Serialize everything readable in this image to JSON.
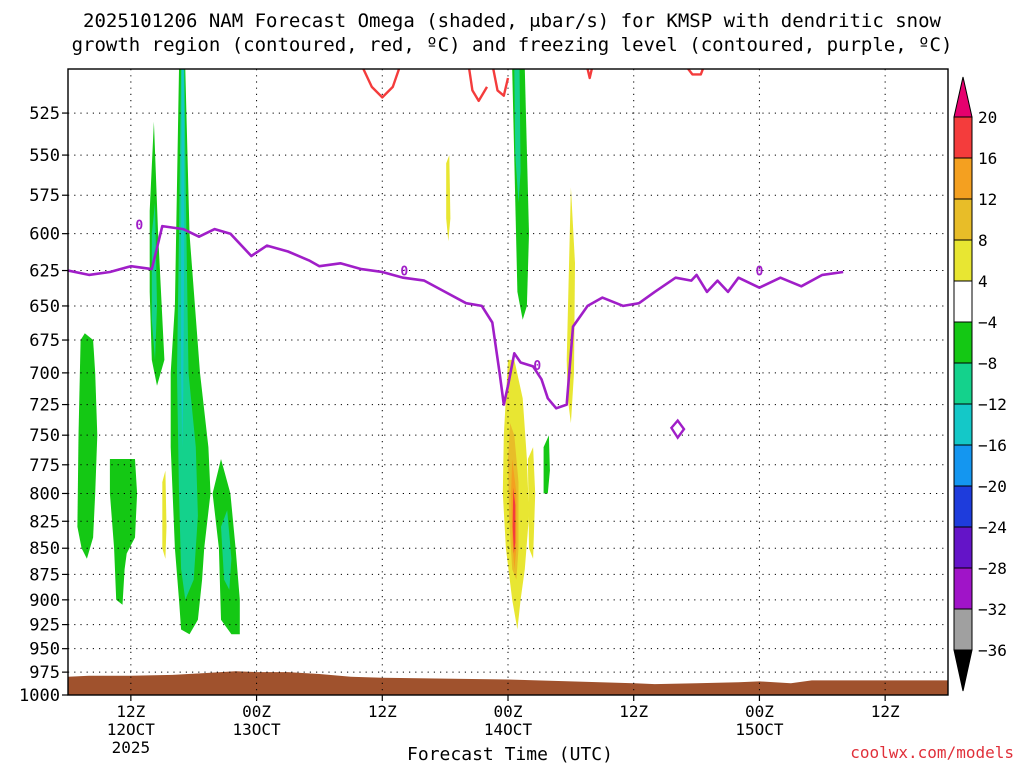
{
  "title": {
    "line1": "2025101206 NAM Forecast Omega (shaded, μbar/s) for KMSP with dendritic snow",
    "line2": "growth region (contoured, red, ºC) and freezing level (contoured, purple, ºC)"
  },
  "credit": "coolwx.com/models",
  "chart_data": {
    "type": "heatmap",
    "title": "2025101206 NAM Forecast Omega (shaded, μbar/s) for KMSP with dendritic snow growth region (contoured, red, ºC) and freezing level (contoured, purple, ºC)",
    "xlabel": "Forecast Time (UTC)",
    "ylabel": "",
    "y_scale": "log-pressure",
    "ylim": [
      1000,
      500
    ],
    "y_ticks": [
      525,
      550,
      575,
      600,
      625,
      650,
      675,
      700,
      725,
      750,
      775,
      800,
      825,
      850,
      875,
      900,
      925,
      950,
      975,
      1000
    ],
    "x_ticks": [
      {
        "hour": 12,
        "label": [
          "12Z",
          "12OCT",
          "2025"
        ]
      },
      {
        "hour": 24,
        "label": [
          "00Z",
          "13OCT"
        ]
      },
      {
        "hour": 36,
        "label": [
          "12Z"
        ]
      },
      {
        "hour": 48,
        "label": [
          "00Z",
          "14OCT"
        ]
      },
      {
        "hour": 60,
        "label": [
          "12Z"
        ]
      },
      {
        "hour": 72,
        "label": [
          "00Z",
          "15OCT"
        ]
      },
      {
        "hour": 84,
        "label": [
          "12Z"
        ]
      }
    ],
    "xlim": [
      6,
      90
    ],
    "grid": true,
    "colorbar": {
      "position": "right",
      "ticks": [
        20,
        16,
        12,
        8,
        4,
        -4,
        -8,
        -12,
        -16,
        -20,
        -24,
        -28,
        -32,
        -36
      ],
      "bins": [
        {
          "from": 20,
          "to": 24,
          "color": "#e6006e"
        },
        {
          "from": 16,
          "to": 20,
          "color": "#f43c3c"
        },
        {
          "from": 12,
          "to": 16,
          "color": "#f4a020"
        },
        {
          "from": 8,
          "to": 12,
          "color": "#e8bd28"
        },
        {
          "from": 4,
          "to": 8,
          "color": "#e8e632"
        },
        {
          "from": -4,
          "to": 4,
          "color": "#ffffff"
        },
        {
          "from": -8,
          "to": -4,
          "color": "#14c814"
        },
        {
          "from": -12,
          "to": -8,
          "color": "#14d28c"
        },
        {
          "from": -16,
          "to": -12,
          "color": "#14c8c8"
        },
        {
          "from": -20,
          "to": -16,
          "color": "#1496f0"
        },
        {
          "from": -24,
          "to": -20,
          "color": "#1e3cdc"
        },
        {
          "from": -28,
          "to": -24,
          "color": "#6414c8"
        },
        {
          "from": -32,
          "to": -28,
          "color": "#a014c8"
        },
        {
          "from": -36,
          "to": -32,
          "color": "#a0a0a0"
        },
        {
          "from": -40,
          "to": -36,
          "color": "#000000"
        }
      ]
    },
    "terrain": {
      "color": "#a0522d",
      "surface_pressure": [
        [
          6,
          980
        ],
        [
          8,
          979
        ],
        [
          12,
          979
        ],
        [
          16,
          978
        ],
        [
          19,
          976
        ],
        [
          22,
          974
        ],
        [
          24,
          975
        ],
        [
          27,
          975
        ],
        [
          30,
          977
        ],
        [
          33,
          980
        ],
        [
          36,
          981
        ],
        [
          42,
          982
        ],
        [
          48,
          983
        ],
        [
          54,
          985
        ],
        [
          60,
          987
        ],
        [
          62,
          988
        ],
        [
          66,
          987
        ],
        [
          70,
          986
        ],
        [
          72,
          985
        ],
        [
          75,
          987
        ],
        [
          77,
          984
        ],
        [
          84,
          984
        ],
        [
          90,
          984
        ]
      ]
    },
    "shaded_regions": [
      {
        "value": -6,
        "polygon": [
          [
            7.2,
            675
          ],
          [
            7.6,
            670
          ],
          [
            8.4,
            675
          ],
          [
            8.6,
            700
          ],
          [
            8.8,
            750
          ],
          [
            8.6,
            800
          ],
          [
            8.4,
            840
          ],
          [
            7.8,
            860
          ],
          [
            7.3,
            850
          ],
          [
            6.9,
            830
          ],
          [
            7.0,
            750
          ]
        ]
      },
      {
        "value": -6,
        "polygon": [
          [
            10.0,
            770
          ],
          [
            12.4,
            770
          ],
          [
            12.6,
            800
          ],
          [
            12.4,
            840
          ],
          [
            11.6,
            855
          ],
          [
            11.4,
            870
          ],
          [
            11.2,
            905
          ],
          [
            10.6,
            900
          ],
          [
            10.4,
            850
          ],
          [
            10.0,
            800
          ]
        ]
      },
      {
        "value": -6,
        "polygon": [
          [
            13.8,
            585
          ],
          [
            14.2,
            530
          ],
          [
            14.6,
            600
          ],
          [
            15.2,
            690
          ],
          [
            14.5,
            710
          ],
          [
            14.0,
            690
          ],
          [
            13.8,
            640
          ]
        ]
      },
      {
        "value": -10,
        "polygon": [
          [
            14.0,
            600
          ],
          [
            14.3,
            580
          ],
          [
            14.5,
            650
          ],
          [
            14.3,
            690
          ],
          [
            14.0,
            660
          ]
        ]
      },
      {
        "value": -6,
        "polygon": [
          [
            16.6,
            500
          ],
          [
            17.2,
            500
          ],
          [
            17.6,
            600
          ],
          [
            18.6,
            700
          ],
          [
            19.4,
            760
          ],
          [
            19.6,
            800
          ],
          [
            19.0,
            850
          ],
          [
            18.8,
            880
          ],
          [
            18.4,
            920
          ],
          [
            17.6,
            935
          ],
          [
            16.8,
            930
          ],
          [
            16.6,
            900
          ],
          [
            16.2,
            850
          ],
          [
            15.8,
            760
          ],
          [
            15.8,
            700
          ],
          [
            16.2,
            650
          ]
        ]
      },
      {
        "value": -10,
        "polygon": [
          [
            16.8,
            500
          ],
          [
            17.1,
            500
          ],
          [
            17.3,
            600
          ],
          [
            17.5,
            700
          ],
          [
            18.2,
            760
          ],
          [
            18.4,
            820
          ],
          [
            18.0,
            880
          ],
          [
            17.2,
            900
          ],
          [
            16.8,
            870
          ],
          [
            16.6,
            800
          ],
          [
            16.4,
            700
          ],
          [
            16.6,
            600
          ]
        ]
      },
      {
        "value": -14,
        "polygon": [
          [
            16.85,
            500
          ],
          [
            17.05,
            500
          ],
          [
            17.1,
            600
          ],
          [
            17.0,
            720
          ],
          [
            16.9,
            760
          ],
          [
            16.8,
            700
          ],
          [
            16.8,
            600
          ]
        ]
      },
      {
        "value": -6,
        "polygon": [
          [
            19.8,
            800
          ],
          [
            20.6,
            770
          ],
          [
            21.5,
            800
          ],
          [
            22.0,
            850
          ],
          [
            22.4,
            900
          ],
          [
            22.4,
            935
          ],
          [
            21.6,
            935
          ],
          [
            20.6,
            920
          ],
          [
            20.4,
            850
          ]
        ]
      },
      {
        "value": -10,
        "polygon": [
          [
            20.6,
            830
          ],
          [
            21.2,
            815
          ],
          [
            21.6,
            860
          ],
          [
            21.4,
            890
          ],
          [
            20.9,
            880
          ]
        ]
      },
      {
        "value": 6,
        "polygon": [
          [
            15.0,
            790
          ],
          [
            15.3,
            780
          ],
          [
            15.4,
            830
          ],
          [
            15.3,
            860
          ],
          [
            15.0,
            850
          ]
        ]
      },
      {
        "value": 6,
        "polygon": [
          [
            42.1,
            555
          ],
          [
            42.4,
            550
          ],
          [
            42.5,
            590
          ],
          [
            42.3,
            605
          ],
          [
            42.1,
            590
          ]
        ]
      },
      {
        "value": -6,
        "polygon": [
          [
            48.4,
            500
          ],
          [
            49.6,
            500
          ],
          [
            50.0,
            600
          ],
          [
            49.8,
            650
          ],
          [
            49.4,
            660
          ],
          [
            48.9,
            640
          ],
          [
            48.7,
            580
          ]
        ]
      },
      {
        "value": -10,
        "polygon": [
          [
            48.6,
            500
          ],
          [
            49.1,
            500
          ],
          [
            49.2,
            560
          ],
          [
            49.0,
            580
          ],
          [
            48.7,
            550
          ]
        ]
      },
      {
        "value": 6,
        "polygon": [
          [
            48.0,
            690
          ],
          [
            48.6,
            690
          ],
          [
            49.4,
            720
          ],
          [
            49.8,
            770
          ],
          [
            50.0,
            820
          ],
          [
            49.6,
            870
          ],
          [
            49.2,
            900
          ],
          [
            48.9,
            930
          ],
          [
            48.4,
            900
          ],
          [
            47.8,
            850
          ],
          [
            47.5,
            800
          ],
          [
            47.6,
            750
          ]
        ]
      },
      {
        "value": 10,
        "polygon": [
          [
            48.2,
            740
          ],
          [
            48.6,
            750
          ],
          [
            49.0,
            790
          ],
          [
            49.0,
            850
          ],
          [
            48.8,
            880
          ],
          [
            48.4,
            870
          ],
          [
            48.1,
            820
          ],
          [
            48.0,
            770
          ]
        ]
      },
      {
        "value": 14,
        "polygon": [
          [
            48.4,
            770
          ],
          [
            48.8,
            800
          ],
          [
            48.8,
            850
          ],
          [
            48.6,
            870
          ],
          [
            48.4,
            840
          ],
          [
            48.3,
            800
          ]
        ]
      },
      {
        "value": 18,
        "polygon": [
          [
            48.5,
            795
          ],
          [
            48.7,
            810
          ],
          [
            48.7,
            845
          ],
          [
            48.55,
            855
          ],
          [
            48.45,
            830
          ]
        ]
      },
      {
        "value": 6,
        "polygon": [
          [
            49.9,
            770
          ],
          [
            50.4,
            760
          ],
          [
            50.6,
            800
          ],
          [
            50.4,
            860
          ],
          [
            50.0,
            850
          ]
        ]
      },
      {
        "value": -6,
        "polygon": [
          [
            51.4,
            760
          ],
          [
            51.9,
            750
          ],
          [
            52.0,
            780
          ],
          [
            51.8,
            800
          ],
          [
            51.4,
            800
          ]
        ]
      },
      {
        "value": 6,
        "polygon": [
          [
            53.6,
            690
          ],
          [
            54.0,
            570
          ],
          [
            54.4,
            620
          ],
          [
            54.3,
            700
          ],
          [
            54.0,
            740
          ],
          [
            53.7,
            720
          ]
        ]
      }
    ],
    "freezing_level": {
      "color": "#a01ec8",
      "label": "0",
      "points": [
        [
          6,
          625
        ],
        [
          8,
          628
        ],
        [
          10,
          626
        ],
        [
          12,
          622
        ],
        [
          14,
          624
        ],
        [
          15,
          595
        ],
        [
          17,
          597
        ],
        [
          18.5,
          602
        ],
        [
          20,
          597
        ],
        [
          21.5,
          600
        ],
        [
          23.5,
          615
        ],
        [
          25,
          608
        ],
        [
          27,
          612
        ],
        [
          29,
          618
        ],
        [
          30,
          622
        ],
        [
          32,
          620
        ],
        [
          34,
          624
        ],
        [
          36,
          626
        ],
        [
          38,
          630
        ],
        [
          40,
          632
        ],
        [
          42,
          640
        ],
        [
          44,
          648
        ],
        [
          45.5,
          650
        ],
        [
          46.5,
          662
        ],
        [
          47.2,
          700
        ],
        [
          47.6,
          725
        ],
        [
          48.0,
          710
        ],
        [
          48.6,
          685
        ],
        [
          49.2,
          692
        ],
        [
          50.4,
          695
        ],
        [
          51.2,
          705
        ],
        [
          51.8,
          720
        ],
        [
          52.6,
          728
        ],
        [
          53.6,
          725
        ],
        [
          54.2,
          665
        ],
        [
          55.6,
          650
        ],
        [
          57,
          644
        ],
        [
          59,
          650
        ],
        [
          60.5,
          648
        ],
        [
          62,
          640
        ],
        [
          64,
          630
        ],
        [
          65.5,
          632
        ],
        [
          66,
          628
        ],
        [
          67,
          640
        ],
        [
          68,
          632
        ],
        [
          69,
          640
        ],
        [
          70,
          630
        ],
        [
          72,
          637
        ],
        [
          74,
          630
        ],
        [
          76,
          636
        ],
        [
          78,
          628
        ],
        [
          80,
          626
        ]
      ]
    },
    "dendritic_growth_region": {
      "color": "#f43c3c",
      "paths": [
        [
          [
            34.2,
            500
          ],
          [
            35.0,
            510
          ],
          [
            36.0,
            516
          ],
          [
            37.0,
            510
          ],
          [
            37.6,
            500
          ]
        ],
        [
          [
            44.3,
            500
          ],
          [
            44.6,
            512
          ],
          [
            45.2,
            518
          ],
          [
            46.0,
            510
          ]
        ],
        [
          [
            46.6,
            500
          ],
          [
            47.0,
            512
          ],
          [
            47.6,
            515
          ],
          [
            48.0,
            505
          ]
        ],
        [
          [
            55.6,
            500
          ],
          [
            55.8,
            505
          ],
          [
            56.0,
            500
          ]
        ],
        [
          [
            65.2,
            500
          ],
          [
            65.6,
            503
          ],
          [
            66.4,
            503
          ],
          [
            66.6,
            500
          ]
        ]
      ]
    },
    "annotations": [
      {
        "text": "0",
        "x": 12.8,
        "y": 594
      },
      {
        "text": "0",
        "x": 38.1,
        "y": 625
      },
      {
        "text": "0",
        "x": 50.8,
        "y": 694
      },
      {
        "text": "0",
        "x": 72.0,
        "y": 625
      }
    ]
  }
}
